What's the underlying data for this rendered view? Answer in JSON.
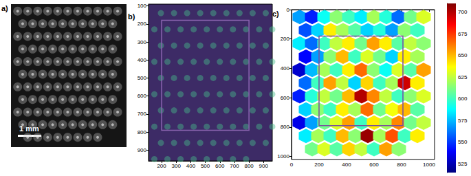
{
  "chart_data": [
    {
      "type": "image",
      "label": "a)",
      "scale_bar": "1 mm",
      "tick_labels": false
    },
    {
      "type": "image",
      "label": "b)",
      "xlim": [
        110,
        960
      ],
      "ylim": [
        90,
        960
      ],
      "xticks": [
        200,
        300,
        400,
        500,
        600,
        700,
        800,
        900
      ],
      "yticks": [
        100,
        200,
        300,
        400,
        500,
        600,
        700,
        800,
        900
      ],
      "rectangle": [
        200,
        180,
        800,
        790
      ]
    },
    {
      "type": "cell map",
      "label": "c)",
      "xlim": [
        0,
        1040
      ],
      "ylim": [
        0,
        1020
      ],
      "xticks": [
        0,
        200,
        400,
        600,
        800,
        1000
      ],
      "yticks": [
        0,
        200,
        400,
        600,
        800,
        1000
      ],
      "rectangle": [
        200,
        180,
        810,
        790
      ],
      "color_range": [
        515,
        710
      ],
      "color_ticks": [
        525,
        550,
        575,
        600,
        625,
        650,
        675,
        700
      ],
      "cells": [
        [
          60,
          50,
          570
        ],
        [
          150,
          50,
          545
        ],
        [
          240,
          50,
          590
        ],
        [
          330,
          50,
          615
        ],
        [
          420,
          50,
          600
        ],
        [
          510,
          50,
          585
        ],
        [
          600,
          50,
          620
        ],
        [
          690,
          50,
          595
        ],
        [
          780,
          50,
          560
        ],
        [
          870,
          50,
          610
        ],
        [
          960,
          50,
          630
        ],
        [
          105,
          140,
          555
        ],
        [
          195,
          140,
          580
        ],
        [
          285,
          140,
          640
        ],
        [
          375,
          140,
          620
        ],
        [
          465,
          140,
          605
        ],
        [
          555,
          140,
          580
        ],
        [
          645,
          140,
          595
        ],
        [
          735,
          140,
          570
        ],
        [
          825,
          140,
          615
        ],
        [
          915,
          140,
          600
        ],
        [
          60,
          230,
          585
        ],
        [
          150,
          230,
          560
        ],
        [
          240,
          230,
          600
        ],
        [
          330,
          230,
          625
        ],
        [
          420,
          230,
          640
        ],
        [
          510,
          230,
          610
        ],
        [
          600,
          230,
          655
        ],
        [
          690,
          230,
          640
        ],
        [
          780,
          230,
          605
        ],
        [
          870,
          230,
          625
        ],
        [
          960,
          230,
          615
        ],
        [
          105,
          320,
          540
        ],
        [
          195,
          320,
          570
        ],
        [
          285,
          320,
          615
        ],
        [
          375,
          320,
          650
        ],
        [
          465,
          320,
          600
        ],
        [
          555,
          320,
          630
        ],
        [
          645,
          320,
          610
        ],
        [
          735,
          320,
          580
        ],
        [
          825,
          320,
          640
        ],
        [
          915,
          320,
          620
        ],
        [
          60,
          410,
          530
        ],
        [
          150,
          410,
          575
        ],
        [
          240,
          410,
          620
        ],
        [
          330,
          410,
          600
        ],
        [
          420,
          410,
          640
        ],
        [
          510,
          410,
          665
        ],
        [
          600,
          410,
          615
        ],
        [
          690,
          410,
          590
        ],
        [
          780,
          410,
          630
        ],
        [
          870,
          410,
          605
        ],
        [
          960,
          410,
          655
        ],
        [
          105,
          500,
          560
        ],
        [
          195,
          500,
          600
        ],
        [
          285,
          500,
          655
        ],
        [
          375,
          500,
          625
        ],
        [
          465,
          500,
          580
        ],
        [
          555,
          500,
          645
        ],
        [
          645,
          500,
          600
        ],
        [
          735,
          500,
          620
        ],
        [
          825,
          500,
          695
        ],
        [
          915,
          500,
          640
        ],
        [
          60,
          590,
          545
        ],
        [
          150,
          590,
          595
        ],
        [
          240,
          590,
          625
        ],
        [
          330,
          590,
          610
        ],
        [
          420,
          590,
          650
        ],
        [
          510,
          590,
          700
        ],
        [
          600,
          590,
          660
        ],
        [
          690,
          590,
          625
        ],
        [
          780,
          590,
          600
        ],
        [
          870,
          590,
          615
        ],
        [
          960,
          590,
          630
        ],
        [
          105,
          680,
          580
        ],
        [
          195,
          680,
          615
        ],
        [
          285,
          680,
          600
        ],
        [
          375,
          680,
          640
        ],
        [
          465,
          680,
          620
        ],
        [
          555,
          680,
          665
        ],
        [
          645,
          680,
          610
        ],
        [
          735,
          680,
          635
        ],
        [
          825,
          680,
          650
        ],
        [
          915,
          680,
          605
        ],
        [
          60,
          770,
          535
        ],
        [
          150,
          770,
          570
        ],
        [
          240,
          770,
          610
        ],
        [
          330,
          770,
          630
        ],
        [
          420,
          770,
          655
        ],
        [
          510,
          770,
          600
        ],
        [
          600,
          770,
          640
        ],
        [
          690,
          770,
          620
        ],
        [
          780,
          770,
          660
        ],
        [
          870,
          770,
          610
        ],
        [
          960,
          770,
          625
        ],
        [
          105,
          860,
          585
        ],
        [
          195,
          860,
          620
        ],
        [
          285,
          860,
          600
        ],
        [
          375,
          860,
          650
        ],
        [
          465,
          860,
          615
        ],
        [
          555,
          860,
          705
        ],
        [
          645,
          860,
          620
        ],
        [
          735,
          860,
          670
        ],
        [
          825,
          860,
          600
        ],
        [
          915,
          860,
          640
        ],
        [
          150,
          950,
          610
        ],
        [
          240,
          950,
          630
        ],
        [
          330,
          950,
          605
        ],
        [
          420,
          950,
          645
        ],
        [
          510,
          950,
          625
        ],
        [
          600,
          950,
          600
        ],
        [
          690,
          950,
          655
        ],
        [
          780,
          950,
          615
        ]
      ]
    }
  ]
}
